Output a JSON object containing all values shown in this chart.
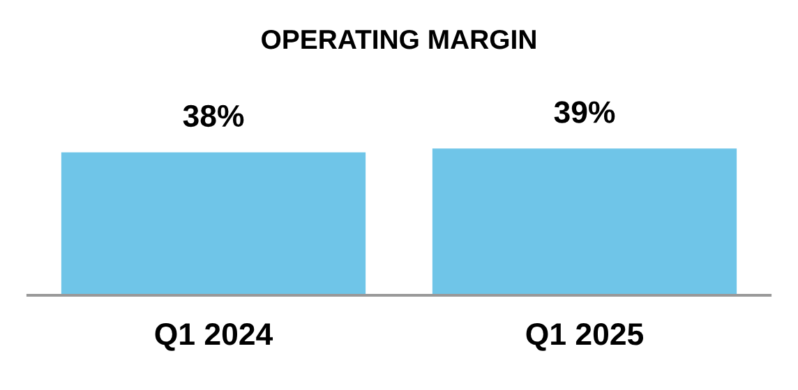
{
  "chart_data": {
    "type": "bar",
    "title": "OPERATING MARGIN",
    "categories": [
      "Q1 2024",
      "Q1 2025"
    ],
    "values": [
      38,
      39
    ],
    "value_labels": [
      "38%",
      "39%"
    ],
    "color": "#6fc5e8",
    "grid": false,
    "legend": false
  }
}
